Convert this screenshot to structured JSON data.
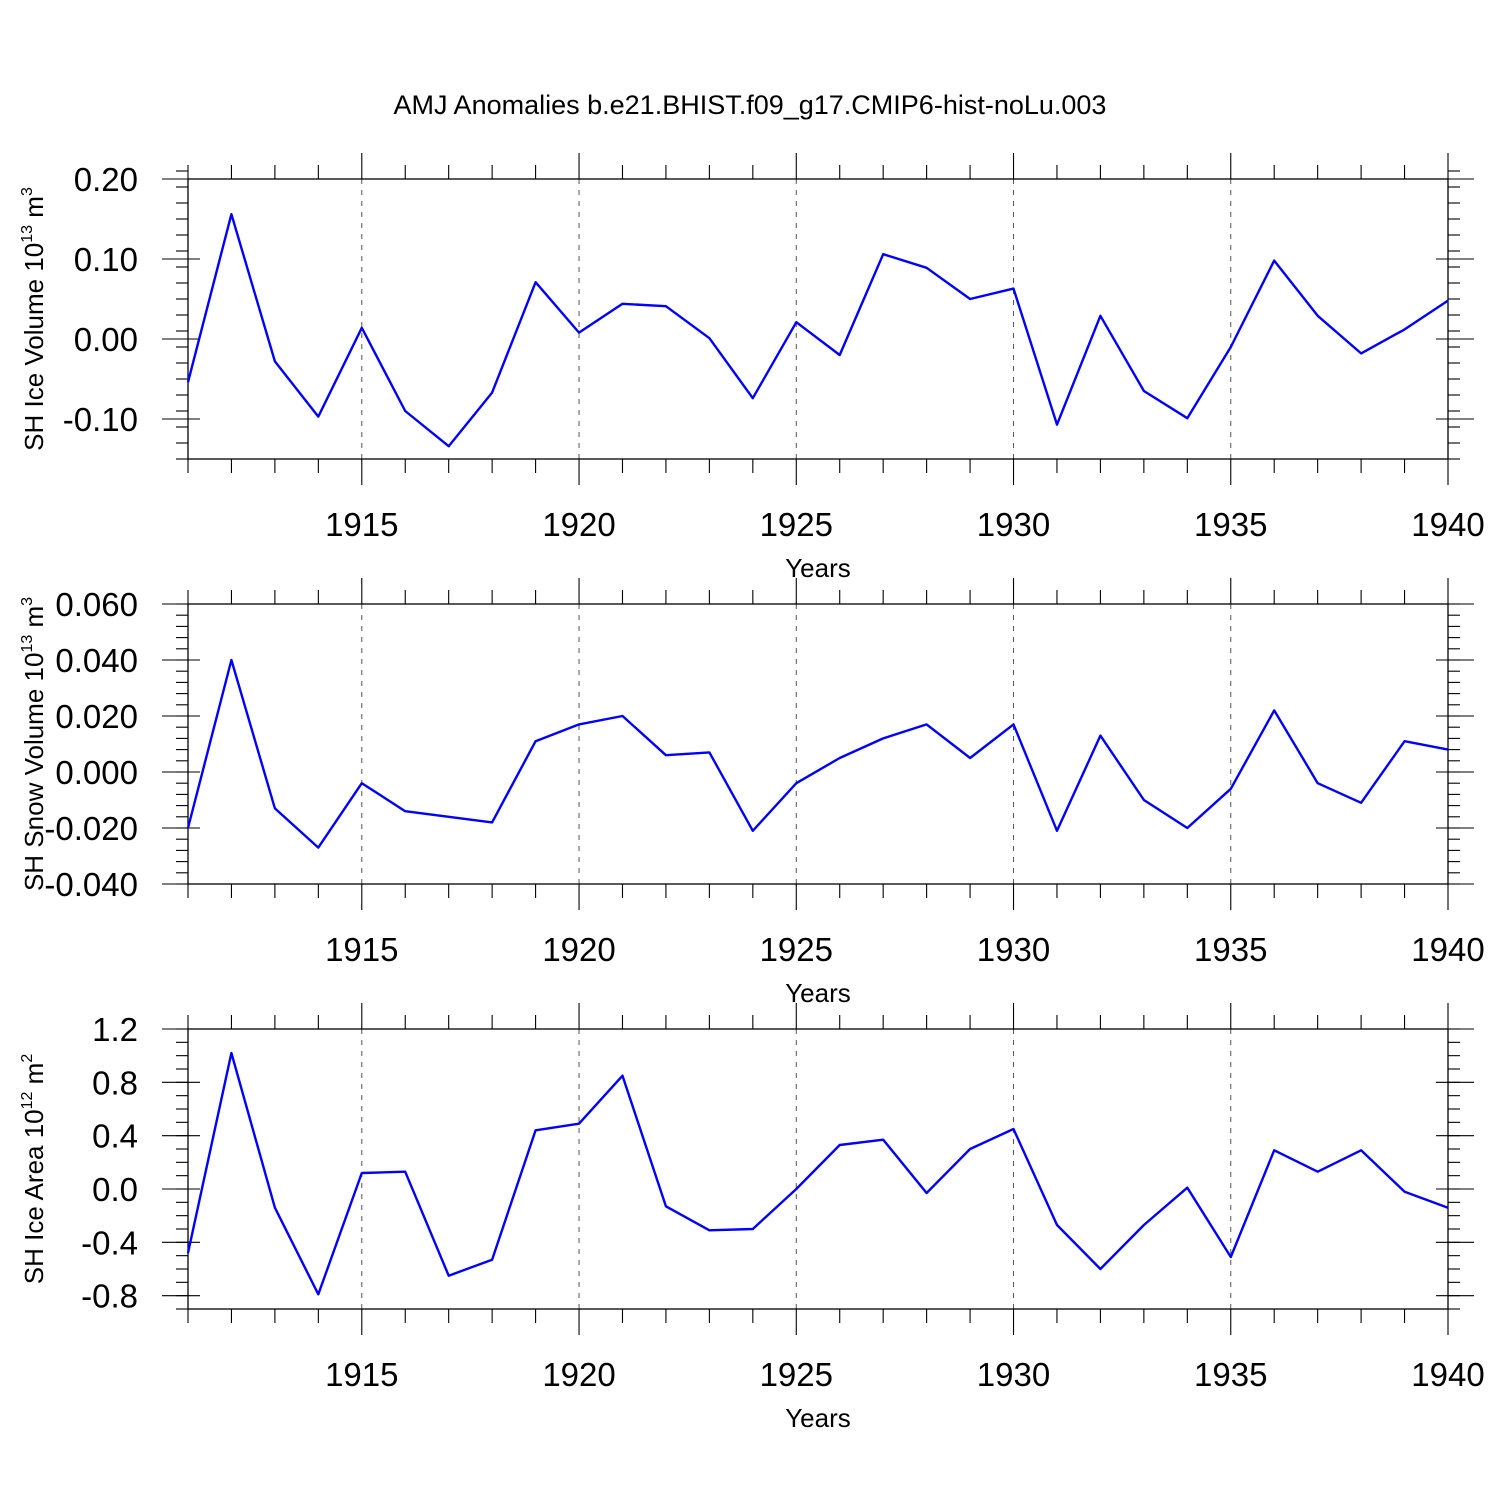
{
  "figure": {
    "title": "AMJ Anomalies b.e21.BHIST.f09_g17.CMIP6-hist-noLu.003",
    "line_color": "#0000ff"
  },
  "chart_data": [
    {
      "type": "line",
      "xlabel": "Years",
      "ylabel": "SH Ice Volume 10",
      "ylabel_exp": "13",
      "ylabel_unit": " m",
      "ylabel_unit_exp": "3",
      "xlim": [
        1911,
        1940
      ],
      "ylim": [
        -0.15,
        0.2
      ],
      "xticks": [
        1915,
        1920,
        1925,
        1930,
        1935,
        1940
      ],
      "xtick_labels": [
        "1915",
        "1920",
        "1925",
        "1930",
        "1935",
        "1940"
      ],
      "yticks": [
        -0.1,
        0.0,
        0.1,
        0.2
      ],
      "ytick_labels": [
        "-0.10",
        "0.00",
        "0.10",
        "0.20"
      ],
      "y_minor_step": 0.02,
      "grid": "vertical dashed at major x ticks",
      "x": [
        1911,
        1912,
        1913,
        1914,
        1915,
        1916,
        1917,
        1918,
        1919,
        1920,
        1921,
        1922,
        1923,
        1924,
        1925,
        1926,
        1927,
        1928,
        1929,
        1930,
        1931,
        1932,
        1933,
        1934,
        1935,
        1936,
        1937,
        1938,
        1939,
        1940
      ],
      "values": [
        -0.054,
        0.156,
        -0.028,
        -0.097,
        0.014,
        -0.09,
        -0.134,
        -0.067,
        0.071,
        0.008,
        0.044,
        0.041,
        0.001,
        -0.074,
        0.021,
        -0.02,
        0.106,
        0.089,
        0.05,
        0.063,
        -0.107,
        0.029,
        -0.065,
        -0.099,
        -0.01,
        0.098,
        0.029,
        -0.018,
        0.012,
        0.048
      ]
    },
    {
      "type": "line",
      "xlabel": "Years",
      "ylabel": "SH Snow Volume 10",
      "ylabel_exp": "13",
      "ylabel_unit": " m",
      "ylabel_unit_exp": "3",
      "xlim": [
        1911,
        1940
      ],
      "ylim": [
        -0.04,
        0.06
      ],
      "xticks": [
        1915,
        1920,
        1925,
        1930,
        1935,
        1940
      ],
      "xtick_labels": [
        "1915",
        "1920",
        "1925",
        "1930",
        "1935",
        "1940"
      ],
      "yticks": [
        -0.04,
        -0.02,
        0.0,
        0.02,
        0.04,
        0.06
      ],
      "ytick_labels": [
        "-0.040",
        "-0.020",
        "0.000",
        "0.020",
        "0.040",
        "0.060"
      ],
      "y_minor_step": 0.004,
      "grid": "vertical dashed at major x ticks",
      "x": [
        1911,
        1912,
        1913,
        1914,
        1915,
        1916,
        1917,
        1918,
        1919,
        1920,
        1921,
        1922,
        1923,
        1924,
        1925,
        1926,
        1927,
        1928,
        1929,
        1930,
        1931,
        1932,
        1933,
        1934,
        1935,
        1936,
        1937,
        1938,
        1939,
        1940
      ],
      "values": [
        -0.02,
        0.04,
        -0.013,
        -0.027,
        -0.004,
        -0.014,
        -0.016,
        -0.018,
        0.011,
        0.017,
        0.02,
        0.006,
        0.007,
        -0.021,
        -0.004,
        0.005,
        0.012,
        0.017,
        0.005,
        0.017,
        -0.021,
        0.013,
        -0.01,
        -0.02,
        -0.006,
        0.022,
        -0.004,
        -0.011,
        0.011,
        0.008
      ]
    },
    {
      "type": "line",
      "xlabel": "Years",
      "ylabel": "SH Ice Area 10",
      "ylabel_exp": "12",
      "ylabel_unit": " m",
      "ylabel_unit_exp": "2",
      "xlim": [
        1911,
        1940
      ],
      "ylim": [
        -0.9,
        1.2
      ],
      "xticks": [
        1915,
        1920,
        1925,
        1930,
        1935,
        1940
      ],
      "xtick_labels": [
        "1915",
        "1920",
        "1925",
        "1930",
        "1935",
        "1940"
      ],
      "yticks": [
        -0.8,
        -0.4,
        0.0,
        0.4,
        0.8,
        1.2
      ],
      "ytick_labels": [
        "-0.8",
        "-0.4",
        "0.0",
        "0.4",
        "0.8",
        "1.2"
      ],
      "y_minor_step": 0.1,
      "grid": "vertical dashed at major x ticks",
      "x": [
        1911,
        1912,
        1913,
        1914,
        1915,
        1916,
        1917,
        1918,
        1919,
        1920,
        1921,
        1922,
        1923,
        1924,
        1925,
        1926,
        1927,
        1928,
        1929,
        1930,
        1931,
        1932,
        1933,
        1934,
        1935,
        1936,
        1937,
        1938,
        1939,
        1940
      ],
      "values": [
        -0.48,
        1.02,
        -0.14,
        -0.79,
        0.12,
        0.13,
        -0.65,
        -0.53,
        0.44,
        0.49,
        0.85,
        -0.13,
        -0.31,
        -0.3,
        0.0,
        0.33,
        0.37,
        -0.03,
        0.3,
        0.45,
        -0.27,
        -0.6,
        -0.27,
        0.01,
        -0.51,
        0.29,
        0.13,
        0.29,
        -0.02,
        -0.14
      ]
    }
  ]
}
